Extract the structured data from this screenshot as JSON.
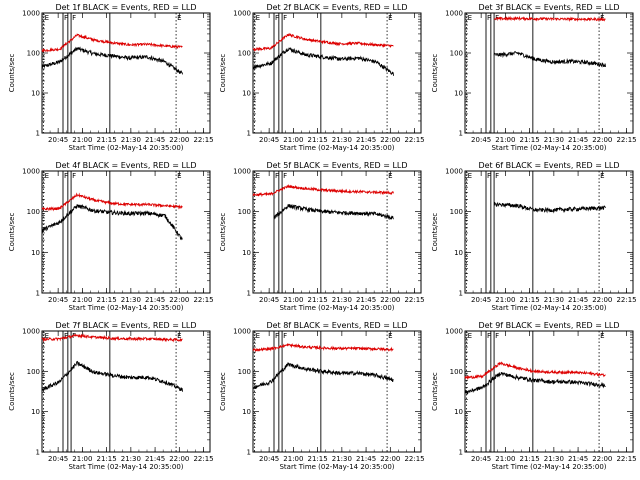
{
  "figure": {
    "x_tick_labels": [
      "20:45",
      "21:00",
      "21:15",
      "21:30",
      "21:45",
      "22:00",
      "22:15"
    ],
    "y_tick_labels": [
      "1",
      "10",
      "100",
      "1000"
    ],
    "ylabel": "Counts/sec",
    "xlabel": "Start Time (02-May-14 20:35:00)",
    "event_marker_label": "E",
    "flare_marker_label": "F"
  },
  "chart_data": [
    {
      "type": "line",
      "title": "Det 1f BLACK = Events, RED = LLD",
      "scale": "log",
      "ylim": [
        1,
        1000
      ],
      "x_range": [
        "20:35",
        "22:19"
      ],
      "series": [
        {
          "color": "#000000",
          "levels": [
            45,
            60,
            130,
            95,
            85,
            75,
            80,
            60,
            30
          ]
        },
        {
          "color": "#dd0000",
          "levels": [
            115,
            125,
            280,
            210,
            180,
            160,
            165,
            150,
            140
          ]
        }
      ]
    },
    {
      "type": "line",
      "title": "Det 2f BLACK = Events, RED = LLD",
      "scale": "log",
      "ylim": [
        1,
        1000
      ],
      "x_range": [
        "20:35",
        "22:19"
      ],
      "series": [
        {
          "color": "#000000",
          "levels": [
            45,
            55,
            130,
            90,
            80,
            70,
            75,
            60,
            30
          ]
        },
        {
          "color": "#dd0000",
          "levels": [
            125,
            130,
            290,
            220,
            190,
            170,
            175,
            160,
            150
          ]
        }
      ]
    },
    {
      "type": "line",
      "title": "Det 3f BLACK = Events, RED = LLD",
      "scale": "log",
      "ylim": [
        1,
        1000
      ],
      "x_range": [
        "20:35",
        "22:19"
      ],
      "series": [
        {
          "color": "#000000",
          "levels": [
            0,
            0,
            90,
            100,
            70,
            60,
            62,
            58,
            50
          ]
        },
        {
          "color": "#dd0000",
          "levels": [
            0,
            0,
            720,
            730,
            720,
            710,
            705,
            700,
            695
          ]
        }
      ]
    },
    {
      "type": "line",
      "title": "Det 4f BLACK = Events, RED = LLD",
      "scale": "log",
      "ylim": [
        1,
        1000
      ],
      "x_range": [
        "20:35",
        "22:19"
      ],
      "series": [
        {
          "color": "#000000",
          "levels": [
            35,
            55,
            140,
            105,
            95,
            90,
            92,
            80,
            20
          ]
        },
        {
          "color": "#dd0000",
          "levels": [
            115,
            120,
            260,
            190,
            160,
            150,
            150,
            140,
            130
          ]
        }
      ]
    },
    {
      "type": "line",
      "title": "Det 5f BLACK = Events, RED = LLD",
      "scale": "log",
      "ylim": [
        1,
        1000
      ],
      "x_range": [
        "20:35",
        "22:19"
      ],
      "series": [
        {
          "color": "#000000",
          "levels": [
            0,
            60,
            140,
            115,
            100,
            95,
            92,
            88,
            70
          ]
        },
        {
          "color": "#dd0000",
          "levels": [
            260,
            270,
            420,
            370,
            340,
            320,
            310,
            300,
            290
          ]
        }
      ]
    },
    {
      "type": "line",
      "title": "Det 6f BLACK = Events, RED = LLD",
      "scale": "log",
      "ylim": [
        1,
        1000
      ],
      "x_range": [
        "20:35",
        "22:19"
      ],
      "series": [
        {
          "color": "#000000",
          "levels": [
            0,
            0,
            150,
            140,
            110,
            110,
            115,
            120,
            125
          ]
        }
      ]
    },
    {
      "type": "line",
      "title": "Det 7f BLACK = Events, RED = LLD",
      "scale": "log",
      "ylim": [
        1,
        1000
      ],
      "x_range": [
        "20:35",
        "22:19"
      ],
      "series": [
        {
          "color": "#000000",
          "levels": [
            35,
            55,
            160,
            95,
            80,
            70,
            72,
            55,
            35
          ]
        },
        {
          "color": "#dd0000",
          "levels": [
            620,
            640,
            780,
            700,
            660,
            640,
            640,
            620,
            600
          ]
        }
      ]
    },
    {
      "type": "line",
      "title": "Det 8f BLACK = Events, RED = LLD",
      "scale": "log",
      "ylim": [
        1,
        1000
      ],
      "x_range": [
        "20:35",
        "22:19"
      ],
      "series": [
        {
          "color": "#000000",
          "levels": [
            40,
            55,
            150,
            115,
            100,
            90,
            90,
            80,
            60
          ]
        },
        {
          "color": "#dd0000",
          "levels": [
            340,
            360,
            450,
            400,
            380,
            370,
            370,
            360,
            350
          ]
        }
      ]
    },
    {
      "type": "line",
      "title": "Det 9f BLACK = Events, RED = LLD",
      "scale": "log",
      "ylim": [
        1,
        1000
      ],
      "x_range": [
        "20:35",
        "22:19"
      ],
      "series": [
        {
          "color": "#000000",
          "levels": [
            30,
            40,
            90,
            70,
            60,
            55,
            55,
            50,
            45
          ]
        },
        {
          "color": "#dd0000",
          "levels": [
            70,
            75,
            160,
            120,
            100,
            95,
            95,
            90,
            80
          ]
        }
      ]
    }
  ]
}
